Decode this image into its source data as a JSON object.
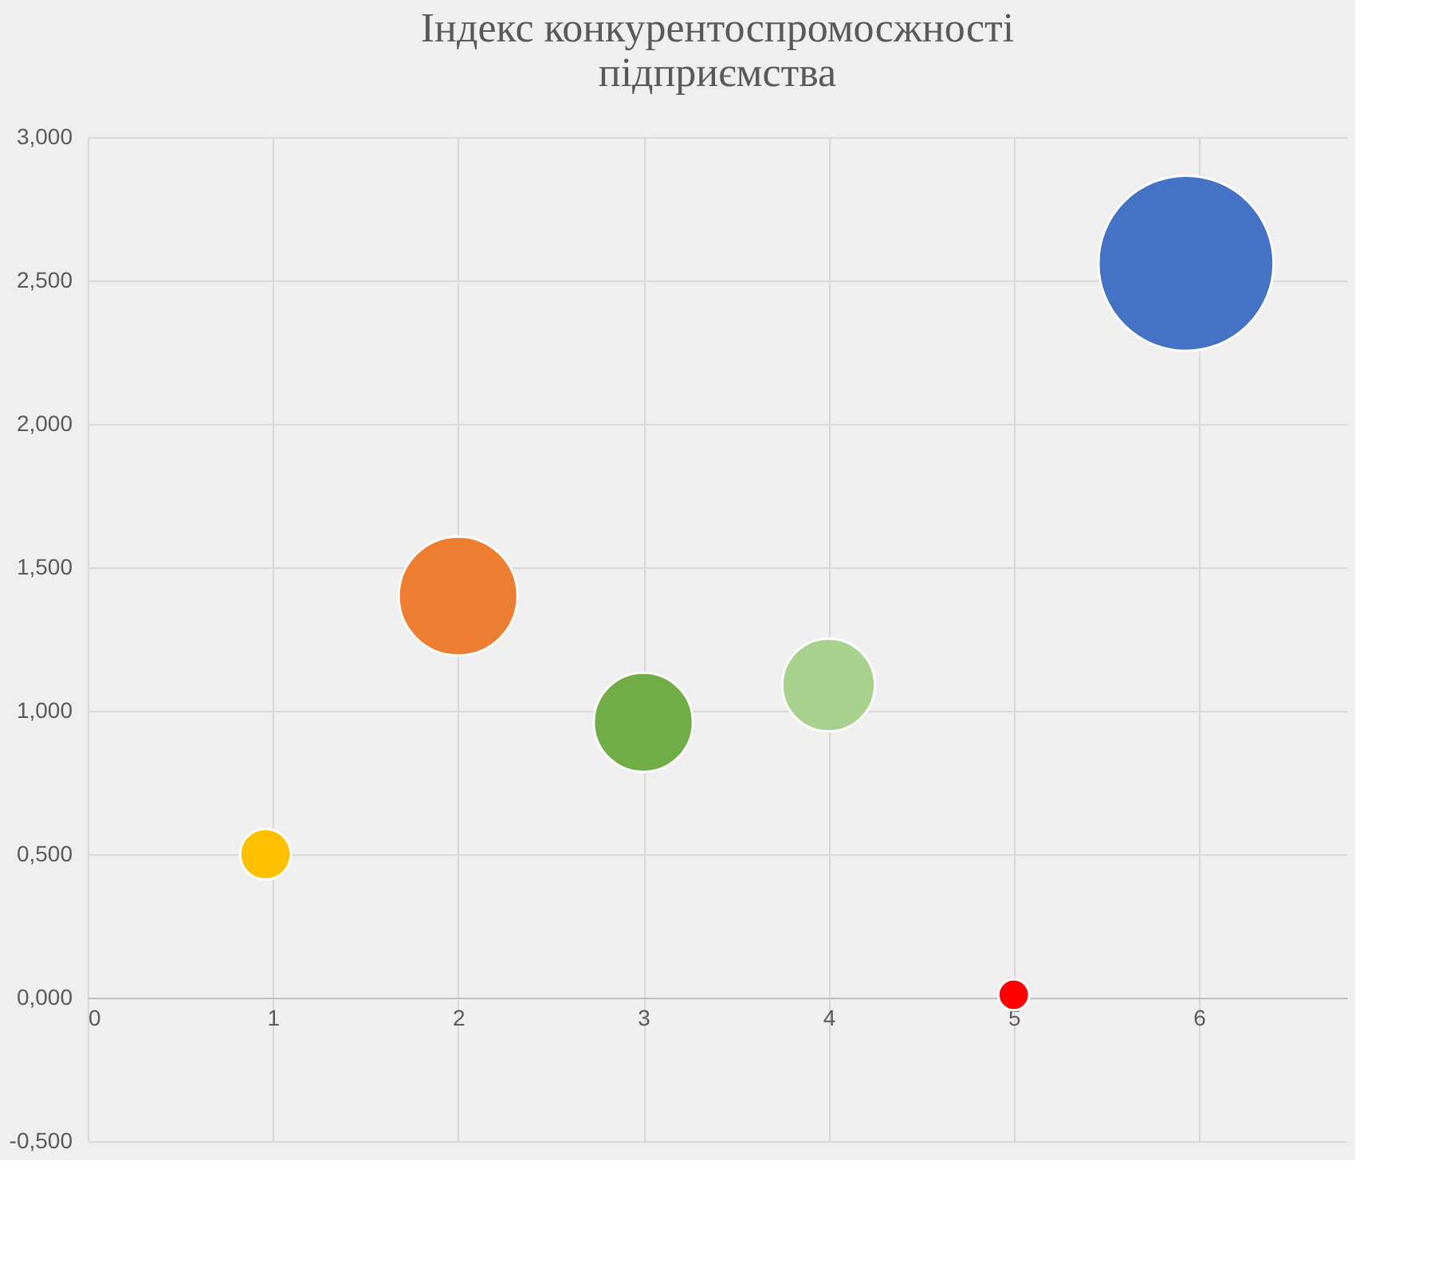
{
  "chart_data": {
    "type": "bubble",
    "title": "Індекс конкурентоспромосжності підприємства",
    "x": [
      0.96,
      2,
      3,
      4,
      5,
      5.93
    ],
    "values": [
      0.5,
      1.4,
      0.96,
      1.09,
      0.01,
      2.56
    ],
    "sizes": [
      0.084,
      0.46,
      0.32,
      0.28,
      0.031,
      1
    ],
    "colors": [
      "#ffc000",
      "#ed7d31",
      "#70ad47",
      "#a9d18e",
      "#ff0000",
      "#4472c4"
    ],
    "xlim": [
      0,
      6.8
    ],
    "xticks": [
      0,
      1,
      2,
      3,
      4,
      5,
      6
    ],
    "ylim": [
      -0.5,
      3
    ],
    "yticks": [
      {
        "value": -0.5,
        "label": "-0,500"
      },
      {
        "value": 0,
        "label": "0,000"
      },
      {
        "value": 0.5,
        "label": "0,500"
      },
      {
        "value": 1,
        "label": "1,000"
      },
      {
        "value": 1.5,
        "label": "1,500"
      },
      {
        "value": 2,
        "label": "2,000"
      },
      {
        "value": 2.5,
        "label": "2,500"
      },
      {
        "value": 3,
        "label": "3,000"
      }
    ],
    "grid": true,
    "legend": false
  }
}
